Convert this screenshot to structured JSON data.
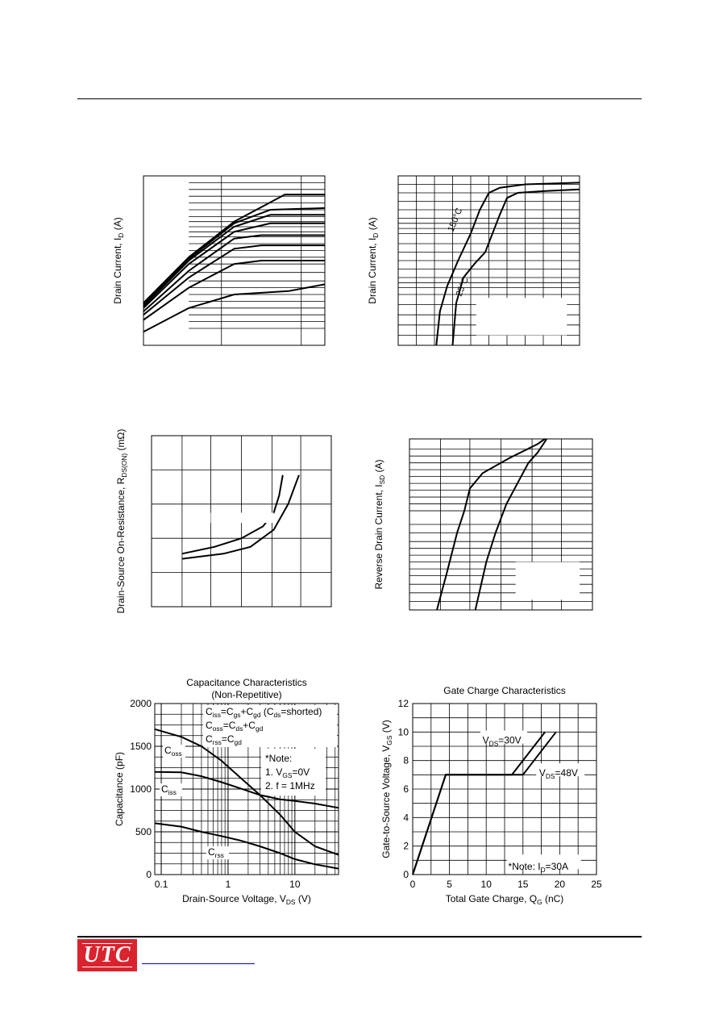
{
  "logo": {
    "text": "UTC"
  },
  "chart_data": [
    {
      "id": "c1",
      "type": "line",
      "title": "",
      "xlabel": "",
      "ylabel": "Drain Current, I",
      "ylabel_sub": "D",
      "ylabel_unit": " (A)",
      "series": [
        {
          "points": [
            [
              0,
              0.08
            ],
            [
              0.25,
              0.22
            ],
            [
              0.5,
              0.3
            ],
            [
              0.65,
              0.31
            ],
            [
              0.8,
              0.32
            ],
            [
              1,
              0.36
            ]
          ]
        },
        {
          "points": [
            [
              0,
              0.15
            ],
            [
              0.25,
              0.34
            ],
            [
              0.5,
              0.48
            ],
            [
              0.65,
              0.5
            ],
            [
              1,
              0.5
            ]
          ]
        },
        {
          "points": [
            [
              0,
              0.18
            ],
            [
              0.25,
              0.4
            ],
            [
              0.5,
              0.57
            ],
            [
              0.65,
              0.59
            ],
            [
              1,
              0.59
            ]
          ]
        },
        {
          "points": [
            [
              0,
              0.2
            ],
            [
              0.25,
              0.44
            ],
            [
              0.5,
              0.63
            ],
            [
              0.65,
              0.65
            ],
            [
              1,
              0.65
            ]
          ]
        },
        {
          "points": [
            [
              0,
              0.22
            ],
            [
              0.25,
              0.48
            ],
            [
              0.5,
              0.67
            ],
            [
              0.7,
              0.72
            ],
            [
              1,
              0.72
            ]
          ]
        },
        {
          "points": [
            [
              0,
              0.23
            ],
            [
              0.25,
              0.5
            ],
            [
              0.5,
              0.7
            ],
            [
              0.7,
              0.77
            ],
            [
              1,
              0.77
            ]
          ]
        },
        {
          "points": [
            [
              0,
              0.24
            ],
            [
              0.25,
              0.51
            ],
            [
              0.5,
              0.72
            ],
            [
              0.7,
              0.8
            ],
            [
              1,
              0.81
            ]
          ]
        },
        {
          "points": [
            [
              0,
              0.25
            ],
            [
              0.25,
              0.52
            ],
            [
              0.5,
              0.73
            ],
            [
              0.78,
              0.89
            ],
            [
              1,
              0.89
            ]
          ]
        }
      ]
    },
    {
      "id": "c2",
      "type": "line",
      "title": "",
      "xlabel": "",
      "ylabel": "Drain Current, I",
      "ylabel_sub": "D",
      "ylabel_unit": " (A)",
      "annotations": [
        "150°C",
        "25°C"
      ],
      "series": [
        {
          "points": [
            [
              0.3,
              0
            ],
            [
              0.32,
              0.25
            ],
            [
              0.36,
              0.4
            ],
            [
              0.42,
              0.48
            ],
            [
              0.48,
              0.55
            ],
            [
              0.52,
              0.66
            ],
            [
              0.56,
              0.77
            ],
            [
              0.6,
              0.87
            ],
            [
              0.66,
              0.9
            ],
            [
              0.8,
              0.91
            ],
            [
              1,
              0.92
            ]
          ]
        },
        {
          "points": [
            [
              0.21,
              0
            ],
            [
              0.23,
              0.2
            ],
            [
              0.27,
              0.35
            ],
            [
              0.33,
              0.5
            ],
            [
              0.4,
              0.66
            ],
            [
              0.45,
              0.8
            ],
            [
              0.5,
              0.9
            ],
            [
              0.56,
              0.93
            ],
            [
              0.7,
              0.95
            ],
            [
              1,
              0.96
            ]
          ]
        }
      ]
    },
    {
      "id": "c3",
      "type": "line",
      "title": "",
      "xlabel": "",
      "ylabel": "Drain-Source On-Resistance, R",
      "ylabel_sub": "DS(ON)",
      "ylabel_unit": " (mΩ)",
      "series": [
        {
          "points": [
            [
              0.17,
              0.31
            ],
            [
              0.35,
              0.35
            ],
            [
              0.5,
              0.4
            ],
            [
              0.62,
              0.47
            ],
            [
              0.68,
              0.55
            ],
            [
              0.71,
              0.65
            ],
            [
              0.73,
              0.77
            ]
          ]
        },
        {
          "points": [
            [
              0.17,
              0.28
            ],
            [
              0.4,
              0.31
            ],
            [
              0.55,
              0.35
            ],
            [
              0.68,
              0.45
            ],
            [
              0.76,
              0.6
            ],
            [
              0.82,
              0.77
            ]
          ]
        }
      ]
    },
    {
      "id": "c4",
      "type": "line",
      "title": "",
      "xlabel": "",
      "ylabel": "Reverse Drain Current, I",
      "ylabel_sub": "SD",
      "ylabel_unit": " (A)",
      "series": [
        {
          "points": [
            [
              0.15,
              0
            ],
            [
              0.2,
              0.2
            ],
            [
              0.26,
              0.45
            ],
            [
              0.3,
              0.58
            ],
            [
              0.33,
              0.71
            ],
            [
              0.4,
              0.8
            ],
            [
              0.55,
              0.89
            ],
            [
              0.7,
              0.97
            ],
            [
              0.74,
              1
            ]
          ]
        },
        {
          "points": [
            [
              0.36,
              0
            ],
            [
              0.42,
              0.28
            ],
            [
              0.47,
              0.45
            ],
            [
              0.53,
              0.62
            ],
            [
              0.6,
              0.76
            ],
            [
              0.65,
              0.86
            ],
            [
              0.7,
              0.92
            ],
            [
              0.75,
              1
            ]
          ]
        }
      ]
    },
    {
      "id": "c5",
      "type": "line",
      "title": "Capacitance Characteristics",
      "subtitle": "(Non-Repetitive)",
      "xlabel": "Drain-Source Voltage, V",
      "xlabel_sub": "DS",
      "xlabel_unit": " (V)",
      "ylabel": "Capacitance (pF)",
      "xscale": "log",
      "xlim": [
        0.08,
        45
      ],
      "ylim": [
        0,
        2000
      ],
      "xticks": [
        "0.1",
        "1",
        "10"
      ],
      "yticks": [
        "0",
        "500",
        "1000",
        "1500",
        "2000"
      ],
      "legend_lines": [
        [
          "C",
          "iss",
          "=C",
          "gs",
          "+C",
          "gd",
          " (C",
          "ds",
          "=shorted)"
        ],
        [
          "C",
          "oss",
          "=C",
          "ds",
          "+C",
          "gd"
        ],
        [
          "C",
          "rss",
          "=C",
          "gd"
        ]
      ],
      "note_lines": [
        [
          "*Note:"
        ],
        [
          "1.",
          " V",
          "GS",
          "=0V"
        ],
        [
          "2.",
          " f = 1MHz"
        ]
      ],
      "series": [
        {
          "name": "C",
          "name_sub": "oss",
          "x": [
            0.08,
            0.2,
            0.4,
            0.8,
            1.5,
            3,
            6,
            10,
            20,
            45
          ],
          "y": [
            1700,
            1610,
            1500,
            1330,
            1140,
            930,
            700,
            500,
            330,
            230
          ]
        },
        {
          "name": "C",
          "name_sub": "iss",
          "x": [
            0.08,
            0.2,
            0.4,
            0.8,
            1.5,
            3,
            6,
            10,
            20,
            45
          ],
          "y": [
            1200,
            1195,
            1150,
            1080,
            1010,
            930,
            880,
            860,
            830,
            780
          ]
        },
        {
          "name": "C",
          "name_sub": "rss",
          "x": [
            0.08,
            0.2,
            0.4,
            0.8,
            1.5,
            3,
            6,
            10,
            20,
            45
          ],
          "y": [
            600,
            560,
            500,
            450,
            400,
            330,
            250,
            180,
            120,
            70
          ]
        }
      ]
    },
    {
      "id": "c6",
      "type": "line",
      "title": "Gate Charge Characteristics",
      "xlabel": "Total Gate Charge, Q",
      "xlabel_sub": "G",
      "xlabel_unit": " (nC)",
      "ylabel": "Gate-to-Source Voltage, V",
      "ylabel_sub": "GS",
      "ylabel_unit": " (V)",
      "xlim": [
        0,
        25
      ],
      "ylim": [
        0,
        12
      ],
      "xticks": [
        "0",
        "5",
        "10",
        "15",
        "20",
        "25"
      ],
      "yticks": [
        "0",
        "2",
        "4",
        "6",
        "8",
        "10",
        "12"
      ],
      "note": [
        "*Note: I",
        "D",
        "=30A"
      ],
      "series": [
        {
          "name": "V",
          "name_sub": "DS",
          "name_val": "=30V",
          "x": [
            0,
            4.5,
            13.5,
            18
          ],
          "y": [
            0,
            7,
            7,
            10
          ]
        },
        {
          "name": "V",
          "name_sub": "DS",
          "name_val": "=48V",
          "x": [
            0,
            4.5,
            15,
            19.5
          ],
          "y": [
            0,
            7,
            7,
            10
          ]
        }
      ]
    }
  ]
}
